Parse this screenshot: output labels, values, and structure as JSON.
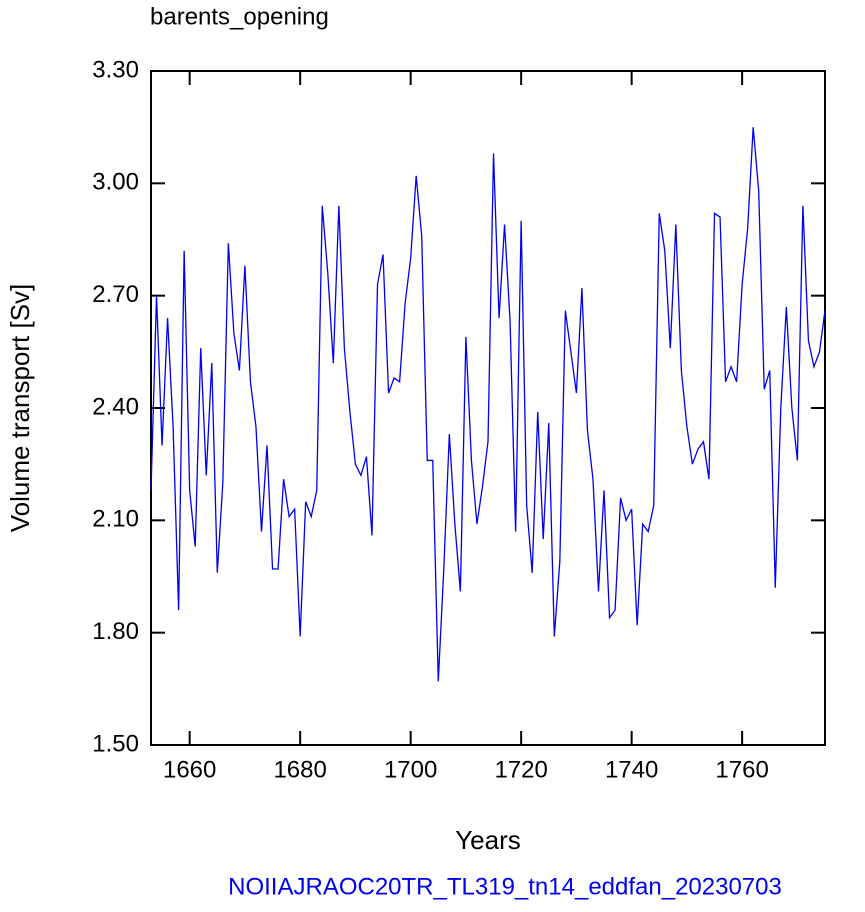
{
  "chart_data": {
    "type": "line",
    "title": "barents_opening",
    "xlabel": "Years",
    "ylabel": "Volume transport [Sv]",
    "footer": "NOIIAJRAOC20TR_TL319_tn14_eddfan_20230703",
    "x": [
      1653,
      1654,
      1655,
      1656,
      1657,
      1658,
      1659,
      1660,
      1661,
      1662,
      1663,
      1664,
      1665,
      1666,
      1667,
      1668,
      1669,
      1670,
      1671,
      1672,
      1673,
      1674,
      1675,
      1676,
      1677,
      1678,
      1679,
      1680,
      1681,
      1682,
      1683,
      1684,
      1685,
      1686,
      1687,
      1688,
      1689,
      1690,
      1691,
      1692,
      1693,
      1694,
      1695,
      1696,
      1697,
      1698,
      1699,
      1700,
      1701,
      1702,
      1703,
      1704,
      1705,
      1706,
      1707,
      1708,
      1709,
      1710,
      1711,
      1712,
      1713,
      1714,
      1715,
      1716,
      1717,
      1718,
      1719,
      1720,
      1721,
      1722,
      1723,
      1724,
      1725,
      1726,
      1727,
      1728,
      1729,
      1730,
      1731,
      1732,
      1733,
      1734,
      1735,
      1736,
      1737,
      1738,
      1739,
      1740,
      1741,
      1742,
      1743,
      1744,
      1745,
      1746,
      1747,
      1748,
      1749,
      1750,
      1751,
      1752,
      1753,
      1754,
      1755,
      1756,
      1757,
      1758,
      1759,
      1760,
      1761,
      1762,
      1763,
      1764,
      1765,
      1766,
      1767,
      1768,
      1769,
      1770,
      1771,
      1772,
      1773,
      1774,
      1775
    ],
    "series": [
      {
        "name": "barents_opening",
        "color": "#0000ee",
        "values": [
          2.18,
          2.7,
          2.3,
          2.64,
          2.35,
          1.86,
          2.82,
          2.18,
          2.03,
          2.56,
          2.22,
          2.52,
          1.96,
          2.2,
          2.84,
          2.6,
          2.5,
          2.78,
          2.47,
          2.35,
          2.07,
          2.3,
          1.97,
          1.97,
          2.21,
          2.11,
          2.13,
          1.79,
          2.15,
          2.11,
          2.18,
          2.94,
          2.76,
          2.52,
          2.94,
          2.56,
          2.39,
          2.25,
          2.22,
          2.27,
          2.06,
          2.73,
          2.81,
          2.44,
          2.48,
          2.47,
          2.68,
          2.8,
          3.02,
          2.86,
          2.26,
          2.26,
          1.67,
          1.97,
          2.33,
          2.09,
          1.91,
          2.59,
          2.26,
          2.09,
          2.19,
          2.31,
          3.08,
          2.64,
          2.89,
          2.63,
          2.07,
          2.9,
          2.14,
          1.96,
          2.39,
          2.05,
          2.36,
          1.79,
          1.99,
          2.66,
          2.55,
          2.44,
          2.72,
          2.34,
          2.21,
          1.91,
          2.18,
          1.84,
          1.86,
          2.16,
          2.1,
          2.13,
          1.82,
          2.09,
          2.07,
          2.14,
          2.92,
          2.82,
          2.56,
          2.89,
          2.5,
          2.35,
          2.25,
          2.29,
          2.31,
          2.21,
          2.92,
          2.91,
          2.47,
          2.51,
          2.47,
          2.73,
          2.88,
          3.15,
          2.98,
          2.45,
          2.5,
          1.92,
          2.4,
          2.67,
          2.4,
          2.26,
          2.94,
          2.58,
          2.51,
          2.55,
          2.66
        ]
      }
    ],
    "xlim": [
      1653,
      1775
    ],
    "ylim": [
      1.5,
      3.3
    ],
    "xticks": [
      1660,
      1680,
      1700,
      1720,
      1740,
      1760
    ],
    "yticks": [
      {
        "value": 1.5,
        "label": "1.50"
      },
      {
        "value": 1.8,
        "label": "1.80"
      },
      {
        "value": 2.1,
        "label": "2.10"
      },
      {
        "value": 2.4,
        "label": "2.40"
      },
      {
        "value": 2.7,
        "label": "2.70"
      },
      {
        "value": 3.0,
        "label": "3.00"
      },
      {
        "value": 3.3,
        "label": "3.30"
      }
    ]
  }
}
